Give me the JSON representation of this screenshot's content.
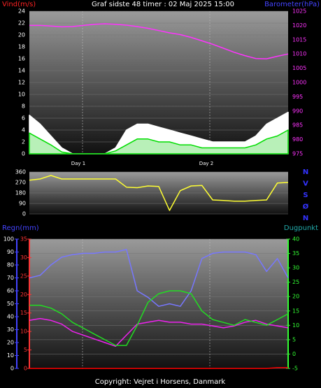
{
  "title": "Graf sidste 48 timer : 02 Maj 2025 15:00",
  "footer": "Copyright: Vejret i Horsens, Danmark",
  "chart_data": [
    {
      "type": "line",
      "y_label": "Vind(m/s)",
      "y2_label": "Barometer(hPa)",
      "ylim": [
        0,
        24
      ],
      "yticks": [
        0,
        2,
        4,
        6,
        8,
        10,
        12,
        14,
        16,
        18,
        20,
        22,
        24
      ],
      "ycolor": "#ffffff",
      "y2lim": [
        975,
        1025
      ],
      "y2ticks": [
        975,
        980,
        985,
        990,
        995,
        1000,
        1005,
        1010,
        1015,
        1020,
        1025
      ],
      "y2color": "#ff33ff",
      "grid": true,
      "day_labels": [
        "Day 1",
        "Day 2"
      ],
      "series": [
        {
          "color": "#ffffff",
          "fill": "#ffffff",
          "values": [
            6.5,
            5,
            3,
            1,
            0,
            0,
            0,
            0,
            1,
            4,
            5,
            5,
            4.5,
            4,
            3.5,
            3,
            2.5,
            2,
            2,
            2,
            2,
            3,
            5,
            6,
            7
          ]
        },
        {
          "color": "#00dd00",
          "fill": "#b8f0b8",
          "values": [
            3.5,
            2.5,
            1.5,
            0.3,
            0,
            0,
            0,
            0,
            0.5,
            1.5,
            2.5,
            2.5,
            2,
            2,
            1.5,
            1.5,
            1,
            1,
            1,
            1,
            1,
            1.5,
            2.5,
            3,
            4
          ]
        },
        {
          "color": "#ff33ff",
          "axis": "y2",
          "values": [
            1020,
            1020,
            1019.8,
            1019.5,
            1019.6,
            1020,
            1020.4,
            1020.6,
            1020.4,
            1020.1,
            1019.6,
            1019,
            1018.2,
            1017.4,
            1016.8,
            1015.8,
            1014.6,
            1013.4,
            1012,
            1010.6,
            1009.4,
            1008.4,
            1008.3,
            1009.2,
            1010
          ]
        }
      ]
    },
    {
      "type": "line",
      "ylim": [
        0,
        360
      ],
      "yticks": [
        0,
        90,
        180,
        270,
        360
      ],
      "ycolor": "#ffffff",
      "grid": true,
      "compass": [
        "N",
        "V",
        "S",
        "Ø",
        "N"
      ],
      "series": [
        {
          "color": "#ffff33",
          "values": [
            290,
            300,
            330,
            300,
            300,
            300,
            300,
            300,
            300,
            230,
            225,
            240,
            235,
            30,
            200,
            240,
            245,
            120,
            115,
            110,
            110,
            115,
            120,
            265,
            270
          ]
        }
      ]
    },
    {
      "type": "line",
      "y_label": "Regn(mm)",
      "y2_label": "Dugpunkt",
      "ylim": [
        0,
        100
      ],
      "yticks": [
        0,
        10,
        20,
        30,
        40,
        50,
        60,
        70,
        80,
        90,
        100
      ],
      "ycolor": "#ffffff",
      "y2lim": [
        0,
        35
      ],
      "y2ticks": [
        0,
        5,
        10,
        15,
        20,
        25,
        30,
        35
      ],
      "y2color": "#ff3333",
      "y3lim": [
        -5,
        40
      ],
      "y3ticks": [
        -5,
        0,
        5,
        10,
        15,
        20,
        25,
        30,
        35,
        40
      ],
      "y3color": "#33ff33",
      "grid": true,
      "series": [
        {
          "color": "#7777ff",
          "values": [
            70,
            72,
            80,
            86,
            88,
            89,
            89,
            90,
            90,
            92,
            60,
            55,
            48,
            50,
            48,
            60,
            85,
            89,
            90,
            90,
            90,
            88,
            75,
            85,
            70
          ]
        },
        {
          "color": "#ee22ee",
          "axis": "y2",
          "values": [
            13,
            13.5,
            13,
            12,
            10,
            9,
            8,
            7,
            6,
            9,
            12,
            12.5,
            13,
            12.5,
            12.5,
            12,
            12,
            11.5,
            11,
            11.5,
            12.5,
            13,
            12,
            11.5,
            11
          ]
        },
        {
          "color": "#22dd22",
          "axis": "y3",
          "values": [
            17,
            17,
            16,
            14,
            11,
            9,
            7,
            5,
            3,
            3,
            10,
            18,
            21,
            22,
            22,
            21,
            15,
            12,
            11,
            10,
            12,
            11,
            10,
            12,
            14
          ]
        },
        {
          "color": "#ff0000",
          "axis": "y2",
          "values": [
            0,
            0,
            0,
            0,
            0,
            0,
            0,
            0,
            0,
            0,
            0,
            0,
            0,
            0,
            0,
            0,
            0,
            0,
            0,
            0,
            0,
            0,
            0,
            0.2,
            0.2
          ]
        }
      ]
    }
  ]
}
